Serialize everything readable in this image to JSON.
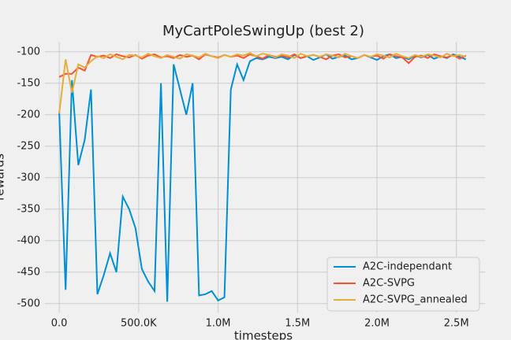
{
  "chart_data": {
    "type": "line",
    "title": "MyCartPoleSwingUp (best 2)",
    "xlabel": "timesteps",
    "ylabel": "rewards",
    "x": [
      0,
      40000,
      80000,
      120000,
      160000,
      200000,
      240000,
      280000,
      320000,
      360000,
      400000,
      440000,
      480000,
      520000,
      560000,
      600000,
      640000,
      680000,
      720000,
      760000,
      800000,
      840000,
      880000,
      920000,
      960000,
      1000000,
      1040000,
      1080000,
      1120000,
      1160000,
      1200000,
      1240000,
      1280000,
      1320000,
      1360000,
      1400000,
      1440000,
      1480000,
      1520000,
      1560000,
      1600000,
      1640000,
      1680000,
      1720000,
      1760000,
      1800000,
      1840000,
      1880000,
      1920000,
      1960000,
      2000000,
      2040000,
      2080000,
      2120000,
      2160000,
      2200000,
      2240000,
      2280000,
      2320000,
      2360000,
      2400000,
      2440000,
      2480000,
      2520000,
      2560000
    ],
    "series": [
      {
        "name": "A2C-independant",
        "color": "#008fd5",
        "values": [
          -195,
          -478,
          -145,
          -280,
          -240,
          -160,
          -485,
          -455,
          -420,
          -450,
          -330,
          -350,
          -380,
          -445,
          -465,
          -480,
          -150,
          -497,
          -120,
          -160,
          -200,
          -150,
          -487,
          -485,
          -480,
          -495,
          -490,
          -160,
          -120,
          -145,
          -115,
          -110,
          -112,
          -108,
          -110,
          -108,
          -112,
          -105,
          -110,
          -107,
          -113,
          -109,
          -104,
          -111,
          -108,
          -106,
          -112,
          -110,
          -105,
          -109,
          -113,
          -107,
          -104,
          -110,
          -108,
          -112,
          -106,
          -109,
          -105,
          -111,
          -107,
          -110,
          -104,
          -108,
          -112
        ]
      },
      {
        "name": "A2C-SVPG",
        "color": "#fc4f30",
        "values": [
          -140,
          -135,
          -135,
          -125,
          -130,
          -105,
          -108,
          -106,
          -110,
          -104,
          -107,
          -109,
          -105,
          -111,
          -106,
          -104,
          -109,
          -107,
          -110,
          -105,
          -108,
          -106,
          -112,
          -104,
          -107,
          -109,
          -105,
          -108,
          -106,
          -110,
          -104,
          -107,
          -111,
          -105,
          -108,
          -106,
          -109,
          -104,
          -110,
          -107,
          -105,
          -108,
          -112,
          -106,
          -104,
          -109,
          -107,
          -110,
          -105,
          -108,
          -106,
          -111,
          -104,
          -107,
          -109,
          -118,
          -108,
          -106,
          -110,
          -104,
          -107,
          -109,
          -105,
          -111,
          -106
        ]
      },
      {
        "name": "A2C-SVPG_annealed",
        "color": "#e5ae38",
        "values": [
          -198,
          -112,
          -165,
          -120,
          -125,
          -115,
          -107,
          -110,
          -104,
          -108,
          -112,
          -105,
          -106,
          -109,
          -103,
          -107,
          -110,
          -105,
          -108,
          -111,
          -104,
          -106,
          -109,
          -103,
          -107,
          -110,
          -105,
          -108,
          -104,
          -106,
          -102,
          -107,
          -103,
          -105,
          -109,
          -104,
          -106,
          -110,
          -103,
          -107,
          -105,
          -108,
          -104,
          -106,
          -109,
          -103,
          -107,
          -110,
          -105,
          -108,
          -104,
          -106,
          -109,
          -103,
          -107,
          -110,
          -105,
          -108,
          -104,
          -106,
          -109,
          -103,
          -107,
          -105,
          -108
        ]
      }
    ],
    "xlim": [
      -90000,
      2680000
    ],
    "ylim": [
      -514,
      -84
    ],
    "xticks": [
      {
        "value": 0,
        "label": "0.0"
      },
      {
        "value": 500000,
        "label": "500.0K"
      },
      {
        "value": 1000000,
        "label": "1.0M"
      },
      {
        "value": 1500000,
        "label": "1.5M"
      },
      {
        "value": 2000000,
        "label": "2.0M"
      },
      {
        "value": 2500000,
        "label": "2.5M"
      }
    ],
    "yticks": [
      -500,
      -450,
      -400,
      -350,
      -300,
      -250,
      -200,
      -150,
      -100
    ],
    "grid": true,
    "legend": "lower right"
  }
}
